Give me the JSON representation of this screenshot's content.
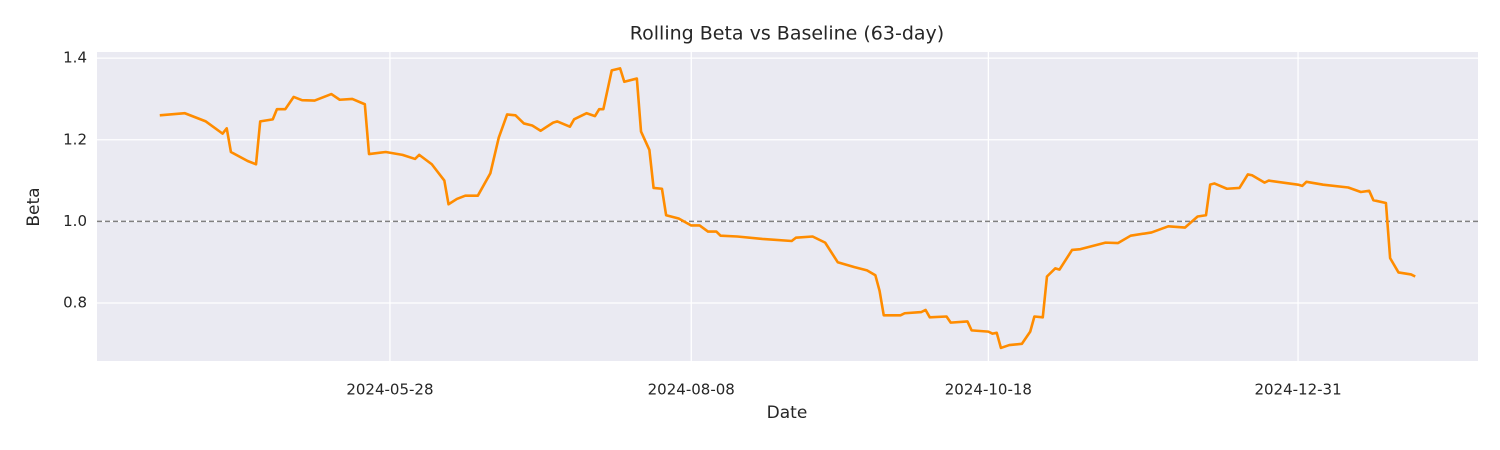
{
  "chart_data": {
    "type": "line",
    "title": "Rolling Beta vs Baseline (63-day)",
    "xlabel": "Date",
    "ylabel": "Beta",
    "x": [
      "2024-04-03",
      "2024-04-09",
      "2024-04-14",
      "2024-04-18",
      "2024-04-19",
      "2024-04-20",
      "2024-04-24",
      "2024-04-26",
      "2024-04-27",
      "2024-04-30",
      "2024-05-01",
      "2024-05-03",
      "2024-05-05",
      "2024-05-07",
      "2024-05-10",
      "2024-05-14",
      "2024-05-16",
      "2024-05-19",
      "2024-05-22",
      "2024-05-23",
      "2024-05-27",
      "2024-05-31",
      "2024-06-03",
      "2024-06-04",
      "2024-06-07",
      "2024-06-10",
      "2024-06-11",
      "2024-06-13",
      "2024-06-15",
      "2024-06-18",
      "2024-06-21",
      "2024-06-23",
      "2024-06-25",
      "2024-06-27",
      "2024-06-29",
      "2024-07-01",
      "2024-07-03",
      "2024-07-06",
      "2024-07-07",
      "2024-07-10",
      "2024-07-11",
      "2024-07-14",
      "2024-07-16",
      "2024-07-17",
      "2024-07-18",
      "2024-07-20",
      "2024-07-22",
      "2024-07-23",
      "2024-07-26",
      "2024-07-27",
      "2024-07-29",
      "2024-07-30",
      "2024-08-01",
      "2024-08-02",
      "2024-08-05",
      "2024-08-08",
      "2024-08-10",
      "2024-08-12",
      "2024-08-14",
      "2024-08-15",
      "2024-08-19",
      "2024-08-25",
      "2024-09-01",
      "2024-09-02",
      "2024-09-06",
      "2024-09-09",
      "2024-09-12",
      "2024-09-16",
      "2024-09-19",
      "2024-09-21",
      "2024-09-22",
      "2024-09-23",
      "2024-09-27",
      "2024-09-28",
      "2024-10-02",
      "2024-10-03",
      "2024-10-04",
      "2024-10-08",
      "2024-10-09",
      "2024-10-13",
      "2024-10-14",
      "2024-10-18",
      "2024-10-19",
      "2024-10-20",
      "2024-10-21",
      "2024-10-23",
      "2024-10-26",
      "2024-10-28",
      "2024-10-29",
      "2024-10-31",
      "2024-11-01",
      "2024-11-03",
      "2024-11-04",
      "2024-11-07",
      "2024-11-09",
      "2024-11-15",
      "2024-11-18",
      "2024-11-21",
      "2024-11-26",
      "2024-11-30",
      "2024-12-04",
      "2024-12-07",
      "2024-12-09",
      "2024-12-10",
      "2024-12-11",
      "2024-12-14",
      "2024-12-17",
      "2024-12-19",
      "2024-12-20",
      "2024-12-23",
      "2024-12-24",
      "2024-12-31",
      "2025-01-01",
      "2025-01-02",
      "2025-01-06",
      "2025-01-12",
      "2025-01-15",
      "2025-01-17",
      "2025-01-18",
      "2025-01-21",
      "2025-01-22",
      "2025-01-24",
      "2025-01-27",
      "2025-01-28"
    ],
    "series": [
      {
        "color": "#ff8c00",
        "values": [
          1.26,
          1.265,
          1.245,
          1.215,
          1.228,
          1.17,
          1.148,
          1.14,
          1.245,
          1.25,
          1.275,
          1.275,
          1.305,
          1.297,
          1.296,
          1.312,
          1.298,
          1.3,
          1.287,
          1.165,
          1.17,
          1.163,
          1.153,
          1.163,
          1.14,
          1.1,
          1.042,
          1.055,
          1.063,
          1.063,
          1.118,
          1.205,
          1.262,
          1.26,
          1.24,
          1.235,
          1.222,
          1.242,
          1.245,
          1.232,
          1.25,
          1.265,
          1.258,
          1.275,
          1.275,
          1.37,
          1.375,
          1.342,
          1.35,
          1.22,
          1.175,
          1.082,
          1.08,
          1.015,
          1.007,
          0.99,
          0.99,
          0.975,
          0.975,
          0.965,
          0.963,
          0.957,
          0.952,
          0.96,
          0.963,
          0.948,
          0.9,
          0.888,
          0.88,
          0.868,
          0.83,
          0.77,
          0.77,
          0.775,
          0.778,
          0.783,
          0.765,
          0.767,
          0.752,
          0.755,
          0.733,
          0.73,
          0.725,
          0.727,
          0.69,
          0.697,
          0.7,
          0.73,
          0.767,
          0.765,
          0.865,
          0.885,
          0.882,
          0.93,
          0.932,
          0.948,
          0.947,
          0.965,
          0.973,
          0.988,
          0.985,
          1.012,
          1.015,
          1.09,
          1.093,
          1.08,
          1.082,
          1.115,
          1.113,
          1.095,
          1.1,
          1.09,
          1.087,
          1.097,
          1.09,
          1.083,
          1.072,
          1.075,
          1.052,
          1.045,
          0.91,
          0.875,
          0.87,
          0.865
        ]
      }
    ],
    "hline": {
      "value": 1,
      "color": "#808080"
    },
    "xlim": [
      "2024-03-19",
      "2025-02-12"
    ],
    "xticks": [
      "2024-05-28",
      "2024-08-08",
      "2024-10-18",
      "2024-12-31"
    ],
    "ylim": [
      0.658,
      1.415
    ],
    "yticks": [
      0.8,
      {
        "value": 1,
        "label": "1.0"
      },
      1.2,
      1.4
    ],
    "grid": true
  }
}
